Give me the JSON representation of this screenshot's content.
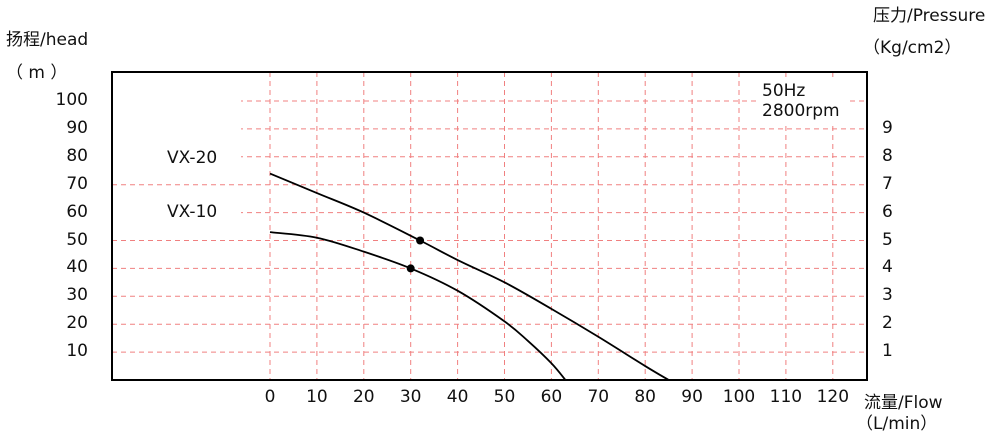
{
  "chart_data": {
    "type": "line",
    "ylabel_cn": "扬程/head",
    "ylabel_unit": "（ m ）",
    "y2label": "压力/Pressure",
    "y2label_unit": "（Kg/cm2）",
    "xlabel": "流量/Flow",
    "xlabel_unit": "（L/min）",
    "annotation": [
      "50Hz",
      "2800rpm"
    ],
    "x_ticks": [
      0,
      10,
      20,
      30,
      40,
      50,
      60,
      70,
      80,
      90,
      100,
      110,
      120
    ],
    "y_ticks": [
      10,
      20,
      30,
      40,
      50,
      60,
      70,
      80,
      90,
      100
    ],
    "y2_ticks": [
      1,
      2,
      3,
      4,
      5,
      6,
      7,
      8,
      9
    ],
    "xlim": [
      0,
      120
    ],
    "ylim": [
      0,
      100
    ],
    "grid": true,
    "series": [
      {
        "name": "VX-20",
        "x": [
          0,
          10,
          20,
          32,
          40,
          50,
          60,
          70,
          80,
          85
        ],
        "y": [
          74,
          67,
          60,
          50,
          43,
          35,
          25.5,
          15.5,
          5,
          0
        ],
        "marker": {
          "x": 32,
          "y": 50
        },
        "color": "#000000"
      },
      {
        "name": "VX-10",
        "x": [
          0,
          10,
          20,
          30,
          40,
          50,
          55,
          60,
          63
        ],
        "y": [
          53,
          51,
          46,
          40,
          32,
          21,
          14,
          6,
          0
        ],
        "marker": {
          "x": 30,
          "y": 40
        },
        "color": "#000000"
      }
    ],
    "colors": {
      "grid": "#f08080",
      "frame": "#000000",
      "curve": "#000000"
    }
  }
}
